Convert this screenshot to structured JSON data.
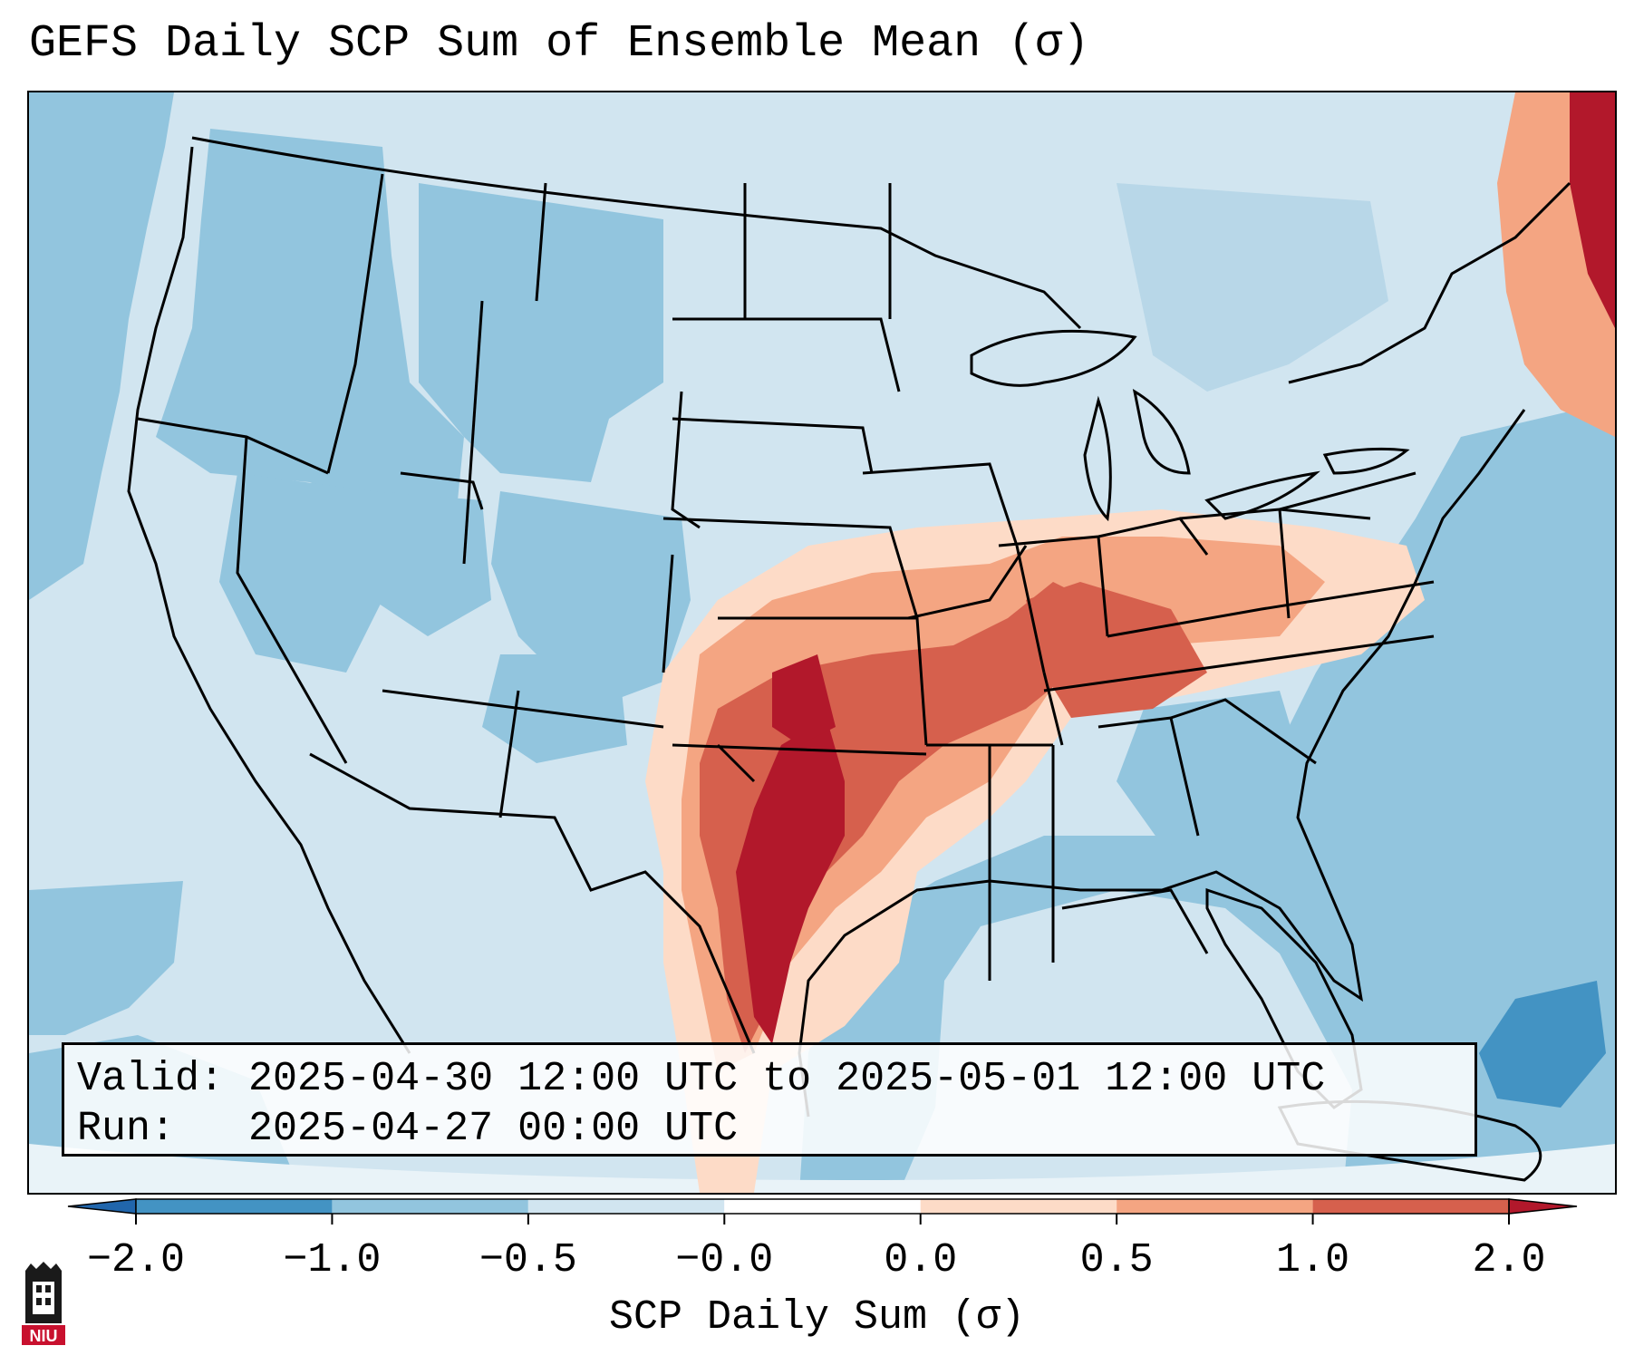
{
  "title": "GEFS Daily SCP Sum of Ensemble Mean (σ)",
  "info": {
    "valid_label": "Valid:",
    "valid_value": "2025-04-30 12:00 UTC to 2025-05-01 12:00 UTC",
    "run_label": "Run:",
    "run_value": "2025-04-27 00:00 UTC"
  },
  "colorbar": {
    "label": "SCP Daily Sum (σ)",
    "ticks": [
      "−2.0",
      "−1.0",
      "−0.5",
      "−0.0",
      "0.0",
      "0.5",
      "1.0",
      "2.0"
    ],
    "colors": [
      "#4393c3",
      "#92c5de",
      "#d1e5f0",
      "#ffffff",
      "#fddbc7",
      "#f4a582",
      "#d6604d",
      "#b2182b"
    ],
    "under_color": "#2166ac",
    "over_color": "#b2182b"
  },
  "map_colors": {
    "background": "#d1e5f0",
    "ocean": "#92c5de",
    "deep": "#4393c3",
    "light_red": "#fddbc7",
    "mid_red": "#f4a582",
    "red": "#d6604d",
    "dark_red": "#b2182b",
    "border": "#000000"
  },
  "logo": {
    "text": "NIU",
    "icon": "niu-university-logo"
  }
}
